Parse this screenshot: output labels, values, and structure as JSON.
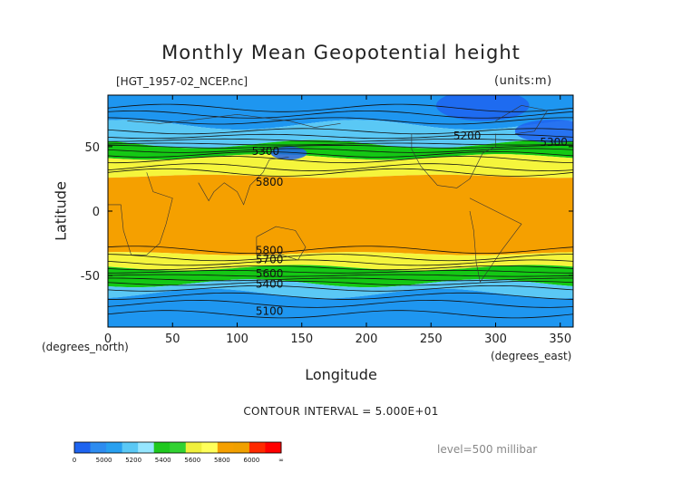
{
  "chart_data": {
    "type": "heatmap",
    "title": "Monthly Mean Geopotential height",
    "file_label": "[HGT_1957-02_NCEP.nc]",
    "units_label": "(units:m)",
    "xlabel": "Longitude",
    "ylabel": "Latitude",
    "xunit": "(degrees_east)",
    "yunit": "(degrees_north)",
    "xlim": [
      0,
      360
    ],
    "ylim": [
      -90,
      90
    ],
    "xticks": [
      0,
      50,
      100,
      150,
      200,
      250,
      300,
      350
    ],
    "yticks": [
      -50,
      0,
      50
    ],
    "bands": [
      {
        "from": 90,
        "to": 67,
        "value": 5200
      },
      {
        "from": 67,
        "to": 52,
        "value": 5400
      },
      {
        "from": 52,
        "to": 42,
        "value": 5600
      },
      {
        "from": 42,
        "to": 27,
        "value": 5800
      },
      {
        "from": 27,
        "to": -33,
        "value": 6000
      },
      {
        "from": -33,
        "to": -44,
        "value": 5800
      },
      {
        "from": -44,
        "to": -56,
        "value": 5600
      },
      {
        "from": -56,
        "to": -64,
        "value": 5400
      },
      {
        "from": -64,
        "to": -90,
        "value": 5200
      }
    ],
    "contour_labels": [
      {
        "lon": 278,
        "lat": 58,
        "text": "5200"
      },
      {
        "lon": 345,
        "lat": 53,
        "text": "5300"
      },
      {
        "lon": 122,
        "lat": 46,
        "text": "5300"
      },
      {
        "lon": 125,
        "lat": 22,
        "text": "5800"
      },
      {
        "lon": 125,
        "lat": -31,
        "text": "5800"
      },
      {
        "lon": 125,
        "lat": -38,
        "text": "5700"
      },
      {
        "lon": 125,
        "lat": -49,
        "text": "5600"
      },
      {
        "lon": 125,
        "lat": -57,
        "text": "5400"
      },
      {
        "lon": 125,
        "lat": -78,
        "text": "5100"
      }
    ],
    "contour_interval": "CONTOUR INTERVAL = 5.000E+01",
    "level": "level=500 millibar",
    "colorbar": {
      "colors": [
        "#1e64f0",
        "#2d8cf0",
        "#28a0f0",
        "#5ac8f5",
        "#96e6ff",
        "#1ec81e",
        "#32d232",
        "#f0f03c",
        "#ffff5a",
        "#f5a000",
        "#f0a000",
        "#ff2a00",
        "#ff0000"
      ],
      "tick_labels": [
        "0",
        "5000",
        "5200",
        "5400",
        "5600",
        "5800",
        "6000",
        "∞"
      ]
    },
    "palette": {
      "5200": "#1e96f0",
      "5400": "#5ac8f5",
      "5600": "#14c814",
      "5800": "#f5f53c",
      "6000": "#f5a000",
      "low": "#1e64f0"
    }
  }
}
